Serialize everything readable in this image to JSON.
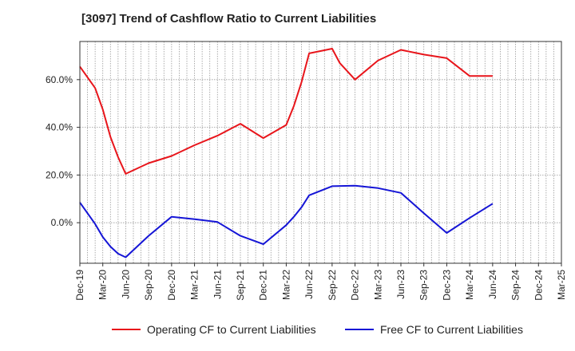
{
  "chart_data": {
    "type": "line",
    "title": "[3097]  Trend of Cashflow Ratio to Current Liabilities",
    "xlabel": "",
    "ylabel": "",
    "x_ticks": [
      "Dec-19",
      "Mar-20",
      "Jun-20",
      "Sep-20",
      "Dec-20",
      "Mar-21",
      "Jun-21",
      "Sep-21",
      "Dec-21",
      "Mar-22",
      "Jun-22",
      "Sep-22",
      "Dec-22",
      "Mar-23",
      "Jun-23",
      "Sep-23",
      "Dec-23",
      "Mar-24",
      "Jun-24",
      "Sep-24",
      "Dec-24",
      "Mar-25"
    ],
    "y_ticks": [
      "0.0%",
      "20.0%",
      "40.0%",
      "60.0%"
    ],
    "y_tick_values": [
      0,
      20,
      40,
      60
    ],
    "ylim": [
      -17,
      76
    ],
    "grid": true,
    "legend_placement": "bottom",
    "series": [
      {
        "name": "Operating CF to Current Liabilities",
        "color": "#e8151b",
        "points": [
          [
            "Dec-19",
            65.5
          ],
          [
            "Feb-20",
            56.5
          ],
          [
            "Mar-20",
            47.5
          ],
          [
            "Apr-20",
            36.0
          ],
          [
            "May-20",
            27.5
          ],
          [
            "Jun-20",
            20.5
          ],
          [
            "Sep-20",
            25.0
          ],
          [
            "Dec-20",
            28.0
          ],
          [
            "Mar-21",
            32.5
          ],
          [
            "Jun-21",
            36.5
          ],
          [
            "Sep-21",
            41.5
          ],
          [
            "Dec-21",
            35.5
          ],
          [
            "Mar-22",
            41.0
          ],
          [
            "Apr-22",
            49.0
          ],
          [
            "May-22",
            59.0
          ],
          [
            "Jun-22",
            71.0
          ],
          [
            "Sep-22",
            73.0
          ],
          [
            "Oct-22",
            67.0
          ],
          [
            "Dec-22",
            60.0
          ],
          [
            "Mar-23",
            68.0
          ],
          [
            "Jun-23",
            72.5
          ],
          [
            "Sep-23",
            70.5
          ],
          [
            "Dec-23",
            69.0
          ],
          [
            "Mar-24",
            61.5
          ],
          [
            "Jun-24",
            61.5
          ]
        ]
      },
      {
        "name": "Free CF to Current Liabilities",
        "color": "#1515d6",
        "points": [
          [
            "Dec-19",
            8.5
          ],
          [
            "Feb-20",
            -0.5
          ],
          [
            "Mar-20",
            -6.0
          ],
          [
            "Apr-20",
            -10.0
          ],
          [
            "May-20",
            -13.0
          ],
          [
            "Jun-20",
            -14.5
          ],
          [
            "Sep-20",
            -5.5
          ],
          [
            "Dec-20",
            2.5
          ],
          [
            "Mar-21",
            1.5
          ],
          [
            "Jun-21",
            0.3
          ],
          [
            "Sep-21",
            -5.5
          ],
          [
            "Dec-21",
            -9.0
          ],
          [
            "Mar-22",
            -1.0
          ],
          [
            "Apr-22",
            2.5
          ],
          [
            "May-22",
            6.5
          ],
          [
            "Jun-22",
            11.5
          ],
          [
            "Sep-22",
            15.3
          ],
          [
            "Dec-22",
            15.5
          ],
          [
            "Mar-23",
            14.5
          ],
          [
            "Jun-23",
            12.5
          ],
          [
            "Sep-23",
            4.0
          ],
          [
            "Dec-23",
            -4.3
          ],
          [
            "Mar-24",
            2.0
          ],
          [
            "Jun-24",
            8.0
          ]
        ]
      }
    ]
  }
}
